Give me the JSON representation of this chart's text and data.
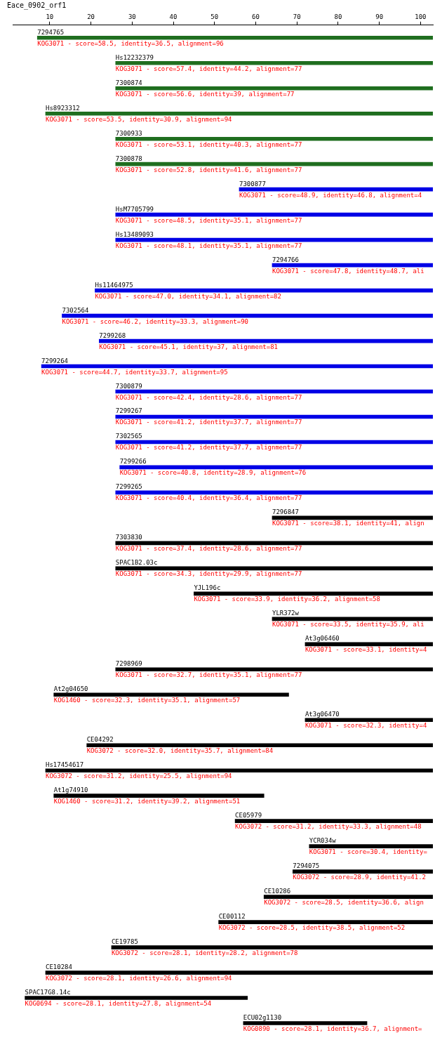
{
  "chart_data": {
    "type": "bar",
    "orientation": "horizontal",
    "title": "Eace_0902_orf1",
    "categories": [
      "7294765",
      "Hs12232379",
      "7300874",
      "Hs8923312",
      "7300933",
      "7300878",
      "7300877",
      "HsM7705799",
      "Hs13489093",
      "7294766",
      "Hs11464975",
      "7302564",
      "7299268",
      "7299264",
      "7300879",
      "7299267",
      "7302565",
      "7299266",
      "7299265",
      "7296847",
      "7303830",
      "SPAC1B2.03c",
      "YJL196c",
      "YLR372w",
      "At3g06460",
      "7298969",
      "At2g04650",
      "At3g06470",
      "CE04292",
      "Hs17454617",
      "At1g74910",
      "CE05979",
      "YCR034w",
      "7294075",
      "CE10286",
      "CE00112",
      "CE19785",
      "CE10284",
      "SPAC17G8.14c",
      "ECU02g1130"
    ],
    "base": [
      7,
      26,
      26,
      9,
      26,
      26,
      56,
      26,
      26,
      64,
      21,
      13,
      22,
      8,
      26,
      26,
      26,
      27,
      26,
      64,
      26,
      26,
      45,
      64,
      72,
      26,
      11,
      72,
      19,
      9,
      11,
      55,
      73,
      69,
      62,
      51,
      25,
      9,
      4,
      57
    ],
    "values": [
      96,
      77,
      77,
      94,
      77,
      77,
      47,
      77,
      77,
      39,
      82,
      90,
      81,
      95,
      77,
      77,
      77,
      76,
      77,
      39,
      77,
      77,
      58,
      39,
      31,
      77,
      57,
      31,
      84,
      94,
      51,
      48,
      30,
      34,
      41,
      52,
      78,
      94,
      54,
      30
    ],
    "colors": [
      "#1f6e1f",
      "#1f6e1f",
      "#1f6e1f",
      "#1f6e1f",
      "#1f6e1f",
      "#1f6e1f",
      "#0000e6",
      "#0000e6",
      "#0000e6",
      "#0000e6",
      "#0000e6",
      "#0000e6",
      "#0000e6",
      "#0000e6",
      "#0000e6",
      "#0000e6",
      "#0000e6",
      "#0000e6",
      "#0000e6",
      "#000000",
      "#000000",
      "#000000",
      "#000000",
      "#000000",
      "#000000",
      "#000000",
      "#000000",
      "#000000",
      "#000000",
      "#000000",
      "#000000",
      "#000000",
      "#000000",
      "#000000",
      "#000000",
      "#000000",
      "#000000",
      "#000000",
      "#000000",
      "#000000"
    ],
    "value_labels": [
      "KOG3071 - score=58.5, identity=36.5, alignment=96",
      "KOG3071 - score=57.4, identity=44.2, alignment=77",
      "KOG3071 - score=56.6, identity=39, alignment=77",
      "KOG3071 - score=53.5, identity=30.9, alignment=94",
      "KOG3071 - score=53.1, identity=40.3, alignment=77",
      "KOG3071 - score=52.8, identity=41.6, alignment=77",
      "KOG3071 - score=48.9, identity=46.8, alignment=4",
      "KOG3071 - score=48.5, identity=35.1, alignment=77",
      "KOG3071 - score=48.1, identity=35.1, alignment=77",
      "KOG3071 - score=47.8, identity=48.7, ali",
      "KOG3071 - score=47.0, identity=34.1, alignment=82",
      "KOG3071 - score=46.2, identity=33.3, alignment=90",
      "KOG3071 - score=45.1, identity=37, alignment=81",
      "KOG3071 - score=44.7, identity=33.7, alignment=95",
      "KOG3071 - score=42.4, identity=28.6, alignment=77",
      "KOG3071 - score=41.2, identity=37.7, alignment=77",
      "KOG3071 - score=41.2, identity=37.7, alignment=77",
      "KOG3071 - score=40.8, identity=28.9, alignment=76",
      "KOG3071 - score=40.4, identity=36.4, alignment=77",
      "KOG3071 - score=38.1, identity=41, align",
      "KOG3071 - score=37.4, identity=28.6, alignment=77",
      "KOG3071 - score=34.3, identity=29.9, alignment=77",
      "KOG3071 - score=33.9, identity=36.2, alignment=58",
      "KOG3071 - score=33.5, identity=35.9, ali",
      "KOG3071 - score=33.1, identity=4",
      "KOG3071 - score=32.7, identity=35.1, alignment=77",
      "KOG1460 - score=32.3, identity=35.1, alignment=57",
      "KOG3071 - score=32.3, identity=4",
      "KOG3072 - score=32.0, identity=35.7, alignment=84",
      "KOG3072 - score=31.2, identity=25.5, alignment=94",
      "KOG1460 - score=31.2, identity=39.2, alignment=51",
      "KOG3072 - score=31.2, identity=33.3, alignment=48",
      "KOG3071 - score=30.4, identity=",
      "KOG3072 - score=28.9, identity=41.2",
      "KOG3072 - score=28.5, identity=36.6, align",
      "KOG3072 - score=28.5, identity=38.5, alignment=52",
      "KOG3072 - score=28.1, identity=28.2, alignment=78",
      "KOG3072 - score=28.1, identity=26.6, alignment=94",
      "KOG0694 - score=28.1, identity=27.8, alignment=54",
      "KOG0890 - score=28.1, identity=36.7, alignment="
    ],
    "xlim": [
      1,
      103
    ],
    "xticks": [
      10,
      20,
      30,
      40,
      50,
      60,
      70,
      80,
      90,
      100
    ],
    "grid": false,
    "legend": false
  }
}
